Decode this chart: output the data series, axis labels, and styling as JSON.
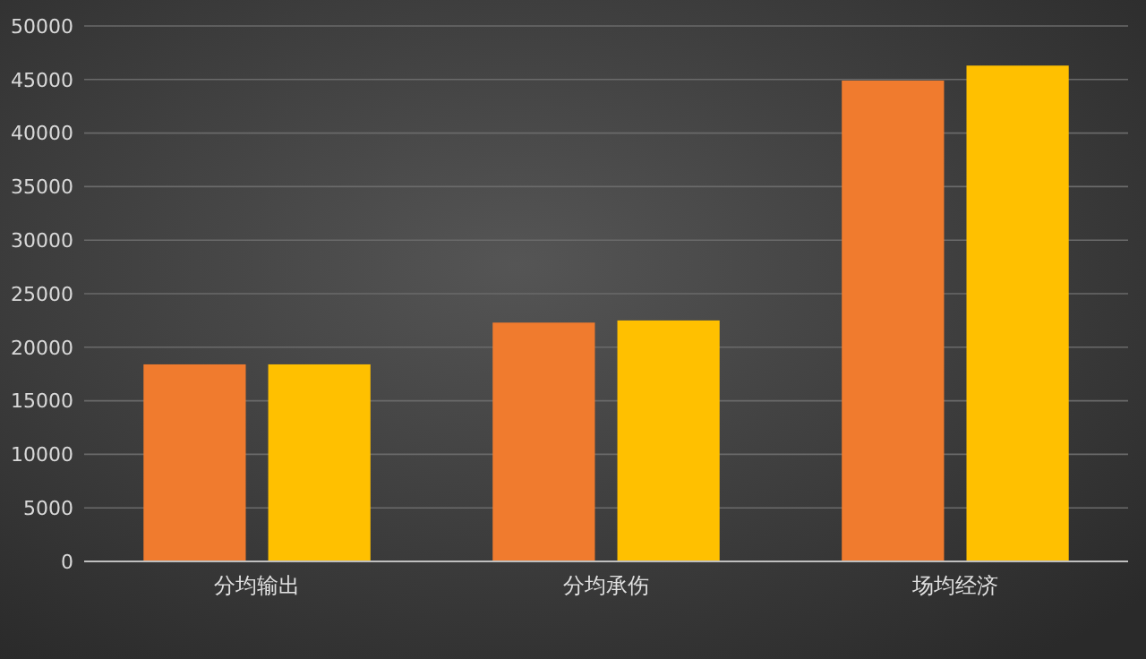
{
  "chart_data": {
    "type": "bar",
    "categories": [
      "分均输出",
      "分均承伤",
      "场均经济"
    ],
    "series": [
      {
        "color": "#f07b2e",
        "values": [
          18400,
          22300,
          44900
        ]
      },
      {
        "color": "#ffc000",
        "values": [
          18400,
          22500,
          46300
        ]
      }
    ],
    "ylim": [
      0,
      50000
    ],
    "yticks": [
      0,
      5000,
      10000,
      15000,
      20000,
      25000,
      30000,
      35000,
      40000,
      45000,
      50000
    ],
    "grid": "y"
  }
}
